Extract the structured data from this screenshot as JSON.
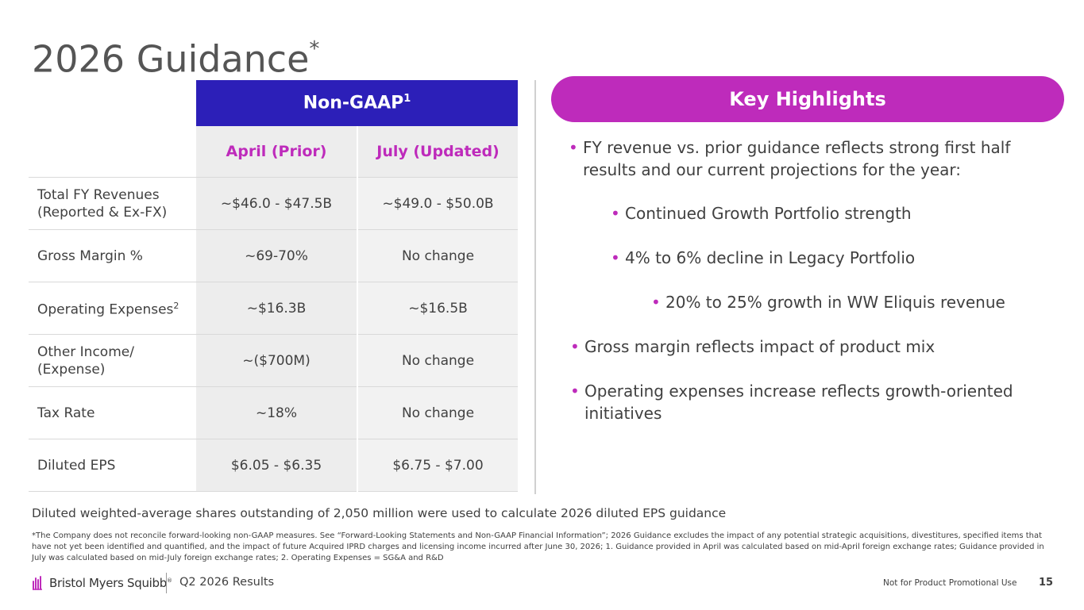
{
  "title": "2026 Guidance",
  "title_mark": "*",
  "table": {
    "band_label": "Non-GAAP",
    "band_sup": "1",
    "columns": [
      "April (Prior)",
      "July (Updated)"
    ],
    "rows": [
      {
        "label": "Total FY Revenues",
        "label2": "(Reported & Ex-FX)",
        "sup": "",
        "prior": "~$46.0 - $47.5B",
        "updated": "~$49.0 - $50.0B"
      },
      {
        "label": "Gross Margin %",
        "label2": "",
        "sup": "",
        "prior": "~69-70%",
        "updated": "No change"
      },
      {
        "label": "Operating Expenses",
        "label2": "",
        "sup": "2",
        "prior": "~$16.3B",
        "updated": "~$16.5B"
      },
      {
        "label": "Other Income/",
        "label2": "(Expense)",
        "sup": "",
        "prior": "~($700M)",
        "updated": "No change"
      },
      {
        "label": "Tax Rate",
        "label2": "",
        "sup": "",
        "prior": "~18%",
        "updated": "No change"
      },
      {
        "label": "Diluted EPS",
        "label2": "",
        "sup": "",
        "prior": "$6.05 - $6.35",
        "updated": "$6.75 - $7.00"
      }
    ]
  },
  "highlights": {
    "header": "Key Highlights",
    "bullet_glyph": "•",
    "items": [
      "FY revenue vs. prior guidance reflects strong first half results and our current projections for the year:",
      "Continued Growth Portfolio strength",
      "4% to 6% decline in Legacy Portfolio",
      "20% to 25% growth in WW Eliquis revenue",
      "Gross margin reflects impact of product mix",
      "Operating expenses increase reflects growth-oriented initiatives"
    ]
  },
  "shares_note": "Diluted weighted-average shares outstanding of 2,050 million were used to calculate 2026 diluted EPS guidance",
  "footnote": "*The Company does not reconcile forward-looking non-GAAP measures. See “Forward-Looking Statements and Non-GAAP Financial Information”; 2026 Guidance excludes the impact of any potential strategic acquisitions, divestitures, specified items that have not yet been identified and quantified, and the impact of future Acquired IPRD charges and licensing income incurred after June 30, 2026; 1. Guidance provided in April was calculated based on mid-April foreign exchange rates; Guidance provided in July was calculated based on mid-July foreign exchange rates; 2. Operating Expenses = SG&A and R&D",
  "footer": {
    "company": "Bristol Myers Squibb",
    "company_mark": "®",
    "deck": "Q2 2026 Results",
    "disclaimer": "Not for Product Promotional Use",
    "page": "15"
  },
  "colors": {
    "band": "#2c1fb8",
    "accent": "#be2bbb",
    "cell": "#ededed"
  }
}
